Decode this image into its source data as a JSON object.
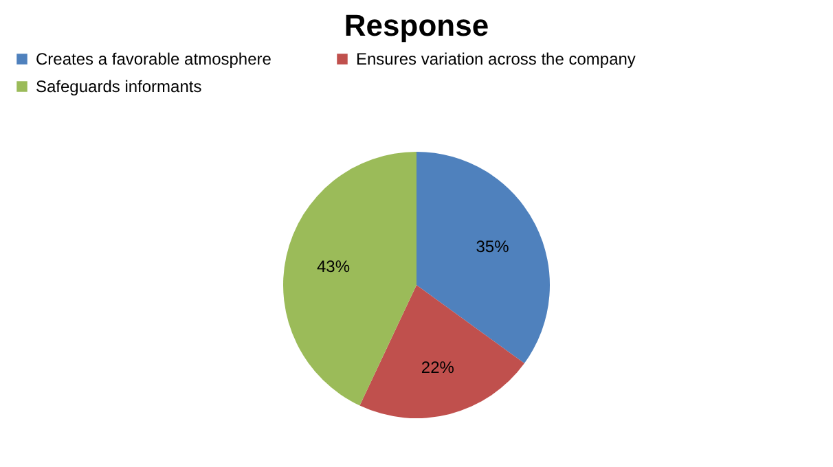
{
  "chart_data": {
    "type": "pie",
    "title": "Response",
    "categories": [
      "Creates a favorable atmosphere",
      "Ensures variation across the company",
      "Safeguards informants"
    ],
    "values": [
      35,
      22,
      43
    ],
    "value_labels": [
      "35%",
      "22%",
      "43%"
    ],
    "colors": [
      "#4f81bd",
      "#c0504d",
      "#9bbb59"
    ],
    "legend": "top"
  }
}
